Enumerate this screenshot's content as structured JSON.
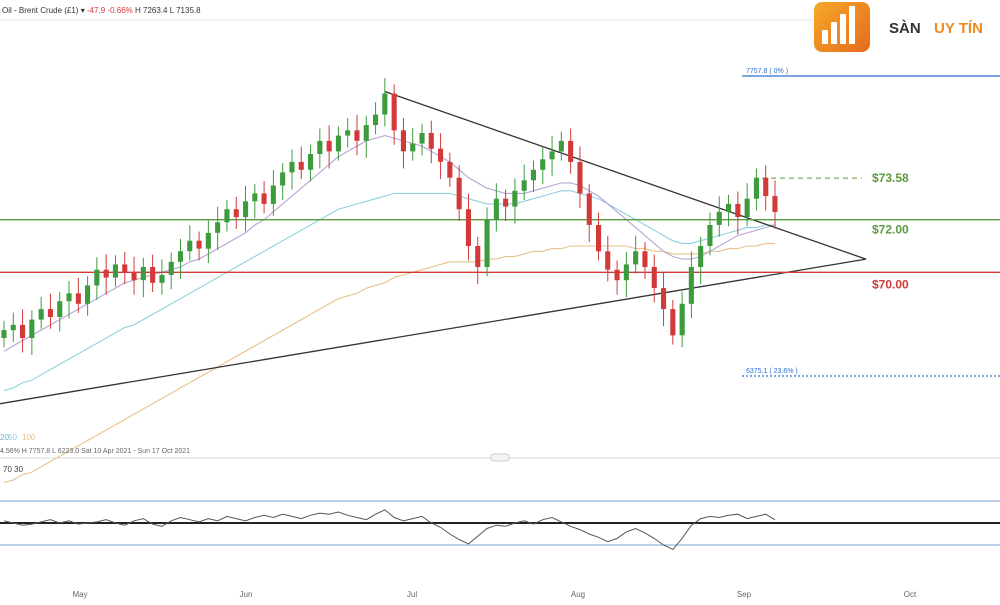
{
  "header": {
    "instrument": "Oil - Brent Crude (£1)",
    "change": "-47.9",
    "change_pct": "-0.66%",
    "high": "H 7263.4",
    "low": "L 7135.8"
  },
  "logo": {
    "brand_main": "SÀN",
    "brand_accent": "UY TÍN"
  },
  "chart_data": {
    "type": "line",
    "title": "",
    "x_months": [
      "May",
      "Jun",
      "Jul",
      "Aug",
      "Sep",
      "Oct"
    ],
    "price_levels": [
      {
        "label": "$73.58",
        "color": "#5a9a3c"
      },
      {
        "label": "$72.00",
        "color": "#5a9a3c"
      },
      {
        "label": "$70.00",
        "color": "#d23a3a"
      }
    ],
    "fib_labels": [
      "7757.8 ( 0% )",
      "6375.1 ( 23.6% )"
    ],
    "ma_legend": [
      "20",
      "50",
      "100"
    ],
    "info_line": "4.56%   H 7757.8   L 6223.0   Sat 10 Apr 2021 - Sun 17 Oct 2021",
    "rsi_labels": [
      "70",
      "30"
    ],
    "close_series": [
      67.8,
      68.0,
      67.5,
      68.2,
      68.6,
      68.3,
      68.9,
      69.2,
      68.8,
      69.5,
      70.1,
      69.8,
      70.3,
      70.0,
      69.7,
      70.2,
      69.6,
      69.9,
      70.4,
      70.8,
      71.2,
      70.9,
      71.5,
      71.9,
      72.4,
      72.1,
      72.7,
      73.0,
      72.6,
      73.3,
      73.8,
      74.2,
      73.9,
      74.5,
      75.0,
      74.6,
      75.2,
      75.4,
      75.0,
      75.6,
      76.0,
      76.8,
      75.4,
      74.6,
      74.9,
      75.3,
      74.7,
      74.2,
      73.6,
      72.4,
      71.0,
      70.2,
      72.0,
      72.8,
      72.5,
      73.1,
      73.5,
      73.9,
      74.3,
      74.6,
      75.0,
      74.2,
      73.0,
      71.8,
      70.8,
      70.1,
      69.7,
      70.3,
      70.8,
      70.2,
      69.4,
      68.6,
      67.6,
      68.8,
      70.2,
      71.0,
      71.8,
      72.3,
      72.6,
      72.1,
      72.8,
      73.6,
      72.9,
      72.3
    ],
    "ma20_series": [
      67.0,
      67.2,
      67.4,
      67.6,
      67.8,
      68.0,
      68.2,
      68.4,
      68.6,
      68.8,
      69.0,
      69.2,
      69.4,
      69.6,
      69.7,
      69.8,
      69.9,
      70.0,
      70.1,
      70.2,
      70.4,
      70.5,
      70.7,
      70.9,
      71.1,
      71.3,
      71.5,
      71.8,
      72.0,
      72.3,
      72.6,
      72.9,
      73.2,
      73.5,
      73.8,
      74.1,
      74.4,
      74.6,
      74.8,
      75.0,
      75.1,
      75.2,
      75.1,
      75.0,
      74.9,
      74.8,
      74.6,
      74.4,
      74.2,
      73.9,
      73.6,
      73.4,
      73.2,
      73.1,
      73.0,
      73.0,
      73.0,
      73.1,
      73.2,
      73.3,
      73.4,
      73.4,
      73.3,
      73.1,
      72.9,
      72.6,
      72.3,
      72.0,
      71.7,
      71.4,
      71.1,
      70.8,
      70.6,
      70.5,
      70.5,
      70.6,
      70.8,
      71.0,
      71.2,
      71.4,
      71.5,
      71.6,
      71.7,
      71.8
    ],
    "ma50_series": [
      65.5,
      65.6,
      65.8,
      65.9,
      66.1,
      66.3,
      66.5,
      66.7,
      66.9,
      67.1,
      67.3,
      67.5,
      67.7,
      67.9,
      68.0,
      68.2,
      68.4,
      68.6,
      68.8,
      69.0,
      69.2,
      69.4,
      69.6,
      69.8,
      70.0,
      70.2,
      70.4,
      70.6,
      70.8,
      71.0,
      71.2,
      71.4,
      71.6,
      71.8,
      72.0,
      72.2,
      72.4,
      72.5,
      72.6,
      72.7,
      72.8,
      72.9,
      73.0,
      73.0,
      73.0,
      73.0,
      73.0,
      73.0,
      73.0,
      72.9,
      72.8,
      72.7,
      72.6,
      72.6,
      72.6,
      72.6,
      72.7,
      72.8,
      72.9,
      73.0,
      73.1,
      73.1,
      73.0,
      72.9,
      72.8,
      72.6,
      72.4,
      72.2,
      72.0,
      71.8,
      71.6,
      71.4,
      71.2,
      71.1,
      71.1,
      71.2,
      71.3,
      71.4,
      71.5,
      71.6,
      71.7,
      71.7,
      71.8,
      71.8
    ],
    "ma100_series": [
      62.0,
      62.1,
      62.3,
      62.4,
      62.6,
      62.8,
      63.0,
      63.2,
      63.4,
      63.6,
      63.8,
      64.0,
      64.2,
      64.4,
      64.6,
      64.8,
      65.0,
      65.2,
      65.4,
      65.6,
      65.8,
      66.0,
      66.2,
      66.4,
      66.6,
      66.8,
      67.0,
      67.2,
      67.4,
      67.6,
      67.8,
      68.0,
      68.2,
      68.4,
      68.6,
      68.8,
      69.0,
      69.1,
      69.2,
      69.4,
      69.5,
      69.6,
      69.8,
      69.9,
      70.0,
      70.1,
      70.2,
      70.3,
      70.4,
      70.4,
      70.4,
      70.4,
      70.5,
      70.5,
      70.6,
      70.6,
      70.7,
      70.8,
      70.8,
      70.9,
      70.9,
      71.0,
      71.0,
      71.0,
      71.0,
      71.0,
      71.0,
      71.0,
      70.9,
      70.9,
      70.8,
      70.8,
      70.7,
      70.7,
      70.7,
      70.7,
      70.8,
      70.8,
      70.9,
      70.9,
      71.0,
      71.0,
      71.1,
      71.1
    ],
    "rsi_series": [
      52,
      50,
      48,
      49,
      51,
      53,
      50,
      52,
      49,
      50,
      51,
      53,
      50,
      48,
      52,
      54,
      49,
      47,
      52,
      55,
      53,
      51,
      54,
      52,
      56,
      54,
      52,
      55,
      57,
      55,
      58,
      56,
      54,
      57,
      59,
      58,
      60,
      57,
      55,
      53,
      58,
      62,
      55,
      52,
      54,
      56,
      50,
      46,
      40,
      35,
      31,
      38,
      45,
      48,
      47,
      50,
      52,
      49,
      53,
      55,
      51,
      47,
      44,
      40,
      37,
      33,
      36,
      42,
      45,
      41,
      36,
      30,
      26,
      36,
      48,
      54,
      56,
      55,
      57,
      58,
      54,
      56,
      58,
      53
    ],
    "rsi_range": [
      0,
      100
    ],
    "ylim": [
      64,
      78
    ]
  }
}
